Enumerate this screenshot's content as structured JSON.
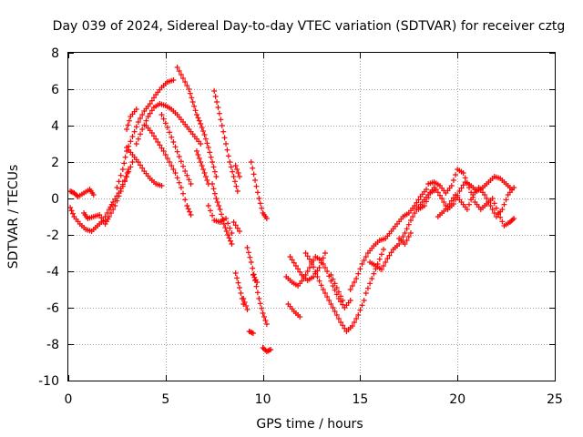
{
  "chart_data": {
    "type": "scatter",
    "title": "Day 039 of 2024, Sidereal Day-to-day VTEC variation (SDTVAR) for receiver cztg",
    "xlabel": "GPS time / hours",
    "ylabel": "SDTVAR / TECUs",
    "xlim": [
      0,
      25
    ],
    "ylim": [
      -10,
      8
    ],
    "xticks": [
      0,
      5,
      10,
      15,
      20,
      25
    ],
    "yticks": [
      -10,
      -8,
      -6,
      -4,
      -2,
      0,
      2,
      4,
      6,
      8
    ],
    "grid": true,
    "marker": "plus",
    "marker_color": "#ff0000",
    "series": [
      {
        "name": "arc-early-1",
        "points": [
          [
            0.1,
            0.4
          ],
          [
            0.3,
            0.3
          ],
          [
            0.5,
            0.1
          ],
          [
            0.8,
            0.3
          ],
          [
            1.1,
            0.5
          ],
          [
            1.3,
            0.2
          ]
        ]
      },
      {
        "name": "arc-early-2",
        "points": [
          [
            0.1,
            -0.5
          ],
          [
            0.3,
            -1.0
          ],
          [
            0.6,
            -1.4
          ],
          [
            0.9,
            -1.7
          ],
          [
            1.2,
            -1.8
          ],
          [
            1.5,
            -1.5
          ],
          [
            1.8,
            -1.2
          ],
          [
            2.1,
            -0.6
          ],
          [
            2.3,
            -0.2
          ],
          [
            2.6,
            0.3
          ],
          [
            2.9,
            1.0
          ],
          [
            3.1,
            1.6
          ]
        ]
      },
      {
        "name": "arc-early-3",
        "points": [
          [
            0.8,
            -0.8
          ],
          [
            1.0,
            -1.1
          ],
          [
            1.3,
            -1.0
          ],
          [
            1.6,
            -0.9
          ],
          [
            1.9,
            -1.4
          ],
          [
            2.1,
            -1.0
          ],
          [
            2.4,
            -0.4
          ],
          [
            2.7,
            0.4
          ],
          [
            3.0,
            1.2
          ],
          [
            3.3,
            2.0
          ]
        ]
      },
      {
        "name": "arc-rise-1",
        "points": [
          [
            2.5,
            0.6
          ],
          [
            2.8,
            1.6
          ],
          [
            3.0,
            2.6
          ],
          [
            3.3,
            3.4
          ],
          [
            3.6,
            4.2
          ],
          [
            3.9,
            4.8
          ],
          [
            4.2,
            5.2
          ],
          [
            4.5,
            5.7
          ],
          [
            4.8,
            6.1
          ],
          [
            5.1,
            6.4
          ],
          [
            5.4,
            6.5
          ]
        ]
      },
      {
        "name": "arc-rise-2",
        "points": [
          [
            3.0,
            3.8
          ],
          [
            3.2,
            4.5
          ],
          [
            3.5,
            4.9
          ]
        ]
      },
      {
        "name": "arc-fall-1",
        "points": [
          [
            3.0,
            2.8
          ],
          [
            3.3,
            2.4
          ],
          [
            3.6,
            2.0
          ],
          [
            3.9,
            1.5
          ],
          [
            4.2,
            1.1
          ],
          [
            4.5,
            0.8
          ],
          [
            4.8,
            0.7
          ]
        ]
      },
      {
        "name": "arc-mid-1",
        "points": [
          [
            3.5,
            3.0
          ],
          [
            3.8,
            3.8
          ],
          [
            4.1,
            4.5
          ],
          [
            4.4,
            5.0
          ],
          [
            4.7,
            5.2
          ],
          [
            5.0,
            5.1
          ],
          [
            5.3,
            4.9
          ],
          [
            5.6,
            4.6
          ],
          [
            5.9,
            4.2
          ],
          [
            6.2,
            3.8
          ],
          [
            6.5,
            3.4
          ],
          [
            6.8,
            3.0
          ]
        ]
      },
      {
        "name": "arc-mid-2",
        "points": [
          [
            4.0,
            4.0
          ],
          [
            4.3,
            3.6
          ],
          [
            4.6,
            3.1
          ],
          [
            4.9,
            2.6
          ],
          [
            5.2,
            2.0
          ],
          [
            5.5,
            1.4
          ],
          [
            5.8,
            0.6
          ],
          [
            6.1,
            -0.4
          ],
          [
            6.3,
            -0.9
          ]
        ]
      },
      {
        "name": "arc-mid-3",
        "points": [
          [
            4.8,
            4.6
          ],
          [
            5.1,
            3.9
          ],
          [
            5.4,
            3.1
          ],
          [
            5.7,
            2.3
          ],
          [
            6.0,
            1.5
          ],
          [
            6.3,
            0.8
          ]
        ]
      },
      {
        "name": "arc-mid-4",
        "points": [
          [
            5.6,
            7.2
          ],
          [
            5.9,
            6.6
          ],
          [
            6.2,
            6.0
          ],
          [
            6.4,
            5.3
          ],
          [
            6.6,
            4.6
          ],
          [
            6.8,
            4.1
          ],
          [
            7.0,
            3.5
          ],
          [
            7.2,
            2.8
          ],
          [
            7.4,
            2.0
          ],
          [
            7.6,
            1.2
          ]
        ]
      },
      {
        "name": "arc-mid-5",
        "points": [
          [
            6.6,
            2.6
          ],
          [
            6.8,
            2.0
          ],
          [
            7.0,
            1.4
          ],
          [
            7.2,
            0.8
          ]
        ]
      },
      {
        "name": "arc-late-1",
        "points": [
          [
            7.5,
            5.9
          ],
          [
            7.7,
            5.0
          ],
          [
            7.9,
            4.0
          ],
          [
            8.1,
            3.0
          ],
          [
            8.3,
            2.0
          ],
          [
            8.5,
            1.2
          ],
          [
            8.7,
            0.4
          ]
        ]
      },
      {
        "name": "arc-late-2",
        "points": [
          [
            7.4,
            0.8
          ],
          [
            7.6,
            0.0
          ],
          [
            7.8,
            -0.6
          ],
          [
            8.0,
            -1.4
          ],
          [
            8.2,
            -2.0
          ],
          [
            8.4,
            -2.5
          ]
        ]
      },
      {
        "name": "arc-late-3",
        "points": [
          [
            7.2,
            -0.4
          ],
          [
            7.5,
            -1.2
          ],
          [
            7.8,
            -1.3
          ],
          [
            8.1,
            -1.1
          ],
          [
            8.4,
            -1.9
          ]
        ]
      },
      {
        "name": "arc-late-4",
        "points": [
          [
            8.6,
            1.8
          ],
          [
            8.8,
            1.2
          ]
        ]
      },
      {
        "name": "arc-late-5",
        "points": [
          [
            8.5,
            -1.3
          ],
          [
            8.8,
            -1.8
          ]
        ]
      },
      {
        "name": "arc-late-6",
        "points": [
          [
            8.6,
            -4.1
          ],
          [
            8.8,
            -4.9
          ],
          [
            9.0,
            -5.8
          ]
        ]
      },
      {
        "name": "arc-late-7",
        "points": [
          [
            9.4,
            2.0
          ],
          [
            9.6,
            1.0
          ],
          [
            9.8,
            0.0
          ],
          [
            10.0,
            -0.8
          ],
          [
            10.2,
            -1.1
          ]
        ]
      },
      {
        "name": "arc-late-8",
        "points": [
          [
            9.2,
            -2.7
          ],
          [
            9.4,
            -3.5
          ],
          [
            9.6,
            -4.5
          ],
          [
            9.8,
            -5.5
          ],
          [
            10.0,
            -6.3
          ],
          [
            10.2,
            -6.9
          ]
        ]
      },
      {
        "name": "arc-late-9",
        "points": [
          [
            9.0,
            -5.5
          ],
          [
            9.2,
            -6.1
          ]
        ]
      },
      {
        "name": "arc-late-10",
        "points": [
          [
            9.5,
            -4.2
          ],
          [
            9.7,
            -4.6
          ]
        ]
      },
      {
        "name": "arc-late-11",
        "points": [
          [
            9.3,
            -7.3
          ],
          [
            9.5,
            -7.4
          ]
        ]
      },
      {
        "name": "arc-late-12",
        "points": [
          [
            10.0,
            -8.2
          ],
          [
            10.2,
            -8.4
          ],
          [
            10.4,
            -8.3
          ]
        ]
      },
      {
        "name": "arc-night-1",
        "points": [
          [
            11.2,
            -4.3
          ],
          [
            11.5,
            -4.6
          ],
          [
            11.8,
            -4.8
          ],
          [
            12.1,
            -4.4
          ],
          [
            12.4,
            -3.8
          ],
          [
            12.7,
            -3.2
          ],
          [
            13.0,
            -3.4
          ],
          [
            13.3,
            -4.0
          ],
          [
            13.6,
            -4.8
          ],
          [
            13.9,
            -5.5
          ],
          [
            14.2,
            -6.0
          ],
          [
            14.5,
            -5.6
          ]
        ]
      },
      {
        "name": "arc-night-2",
        "points": [
          [
            11.4,
            -3.2
          ],
          [
            11.7,
            -3.7
          ],
          [
            12.0,
            -4.2
          ],
          [
            12.3,
            -4.5
          ],
          [
            12.6,
            -4.3
          ],
          [
            12.9,
            -3.8
          ],
          [
            13.2,
            -3.0
          ]
        ]
      },
      {
        "name": "arc-night-3",
        "points": [
          [
            11.3,
            -5.8
          ],
          [
            11.6,
            -6.2
          ],
          [
            11.9,
            -6.5
          ]
        ]
      },
      {
        "name": "arc-night-4",
        "points": [
          [
            12.2,
            -3.0
          ],
          [
            12.5,
            -3.5
          ],
          [
            12.8,
            -4.3
          ],
          [
            13.1,
            -5.0
          ],
          [
            13.4,
            -5.6
          ],
          [
            13.7,
            -6.2
          ],
          [
            14.0,
            -6.8
          ],
          [
            14.3,
            -7.3
          ],
          [
            14.6,
            -7.0
          ],
          [
            14.9,
            -6.4
          ],
          [
            15.2,
            -5.6
          ]
        ]
      },
      {
        "name": "arc-night-5",
        "points": [
          [
            13.5,
            -4.2
          ],
          [
            13.8,
            -4.9
          ],
          [
            14.1,
            -5.6
          ]
        ]
      },
      {
        "name": "arc-recovery-1",
        "points": [
          [
            14.5,
            -5.0
          ],
          [
            14.8,
            -4.4
          ],
          [
            15.1,
            -3.6
          ],
          [
            15.4,
            -3.0
          ],
          [
            15.7,
            -2.6
          ],
          [
            16.0,
            -2.3
          ],
          [
            16.3,
            -2.2
          ],
          [
            16.6,
            -1.8
          ],
          [
            16.9,
            -1.4
          ],
          [
            17.2,
            -1.0
          ],
          [
            17.5,
            -0.8
          ],
          [
            17.8,
            -0.4
          ],
          [
            18.1,
            0.1
          ],
          [
            18.4,
            0.5
          ]
        ]
      },
      {
        "name": "arc-recovery-2",
        "points": [
          [
            15.5,
            -3.5
          ],
          [
            15.8,
            -3.7
          ],
          [
            16.1,
            -3.9
          ],
          [
            16.4,
            -3.3
          ],
          [
            16.7,
            -2.8
          ],
          [
            17.0,
            -2.5
          ],
          [
            17.3,
            -1.9
          ],
          [
            17.6,
            -1.2
          ],
          [
            17.9,
            -0.6
          ],
          [
            18.2,
            -0.2
          ],
          [
            18.5,
            0.2
          ],
          [
            18.8,
            0.6
          ]
        ]
      },
      {
        "name": "arc-recovery-3",
        "points": [
          [
            15.3,
            -5.2
          ],
          [
            15.6,
            -4.4
          ],
          [
            15.9,
            -3.6
          ],
          [
            16.2,
            -2.8
          ]
        ]
      },
      {
        "name": "arc-recovery-4",
        "points": [
          [
            17.0,
            -2.2
          ],
          [
            17.3,
            -2.5
          ],
          [
            17.6,
            -1.9
          ]
        ]
      },
      {
        "name": "arc-day2-1",
        "points": [
          [
            18.0,
            -0.6
          ],
          [
            18.3,
            -0.4
          ],
          [
            18.6,
            0.3
          ],
          [
            18.9,
            0.5
          ],
          [
            19.2,
            0.0
          ],
          [
            19.5,
            -0.6
          ],
          [
            19.8,
            -0.3
          ],
          [
            20.1,
            0.4
          ],
          [
            20.4,
            0.9
          ],
          [
            20.7,
            0.7
          ],
          [
            21.0,
            0.4
          ],
          [
            21.3,
            0.6
          ],
          [
            21.6,
            0.9
          ],
          [
            21.9,
            1.2
          ],
          [
            22.2,
            1.1
          ],
          [
            22.5,
            0.8
          ],
          [
            22.8,
            0.5
          ]
        ]
      },
      {
        "name": "arc-day2-2",
        "points": [
          [
            18.5,
            0.8
          ],
          [
            18.8,
            0.9
          ],
          [
            19.1,
            0.7
          ],
          [
            19.4,
            0.3
          ],
          [
            19.7,
            0.7
          ],
          [
            20.0,
            1.6
          ],
          [
            20.3,
            1.4
          ],
          [
            20.6,
            0.6
          ],
          [
            20.9,
            -0.2
          ],
          [
            21.2,
            -0.6
          ],
          [
            21.5,
            -0.3
          ],
          [
            21.8,
            0.0
          ],
          [
            22.1,
            -0.8
          ],
          [
            22.4,
            -1.5
          ],
          [
            22.7,
            -1.3
          ],
          [
            22.9,
            -1.1
          ]
        ]
      },
      {
        "name": "arc-day2-3",
        "points": [
          [
            19.0,
            -1.0
          ],
          [
            19.3,
            -0.7
          ],
          [
            19.6,
            -0.3
          ],
          [
            19.9,
            0.2
          ],
          [
            20.2,
            -0.2
          ],
          [
            20.5,
            -0.6
          ],
          [
            20.8,
            0.2
          ],
          [
            21.1,
            0.6
          ],
          [
            21.4,
            0.2
          ],
          [
            21.7,
            -0.4
          ],
          [
            22.0,
            -1.0
          ],
          [
            22.3,
            -0.6
          ],
          [
            22.6,
            0.2
          ],
          [
            22.9,
            0.6
          ]
        ]
      }
    ]
  }
}
